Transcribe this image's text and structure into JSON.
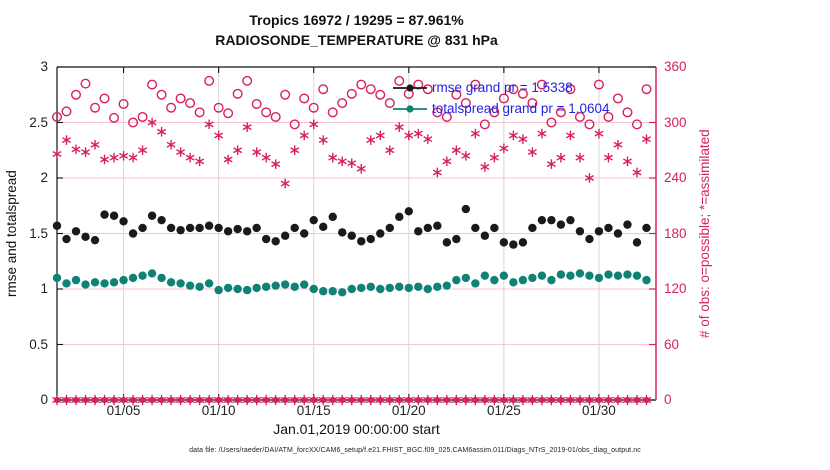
{
  "titles": {
    "line1": "Tropics 16972 / 19295 = 87.961%",
    "line2": "RADIOSONDE_TEMPERATURE @ 831 hPa"
  },
  "footer": {
    "text": "data file: /Users/raeder/DAI/ATM_forcXX/CAM6_setup/f.e21.FHIST_BGC.f09_025.CAM6assim.011/Diags_NTrS_2019-01/obs_diag_output.nc"
  },
  "chart_data": {
    "type": "scatter",
    "title": "Tropics 16972 / 19295 = 87.961%",
    "subtitle": "RADIOSONDE_TEMPERATURE @ 831 hPa",
    "xlabel": "Jan.01,2019 00:00:00 start",
    "ylabel_left": "rmse and totalspread",
    "ylabel_right": "# of obs: o=possible; *=assimilated",
    "xlim_days": [
      1.5,
      33.0
    ],
    "ylim_left": [
      0,
      3
    ],
    "ylim_right": [
      0,
      360
    ],
    "xtick_days": [
      5,
      10,
      15,
      20,
      25,
      30
    ],
    "xtick_labels": [
      "01/05",
      "01/10",
      "01/15",
      "01/20",
      "01/25",
      "01/30"
    ],
    "ytick_left_values": [
      0,
      0.5,
      1,
      1.5,
      2,
      2.5,
      3
    ],
    "ytick_left_labels": [
      "0",
      "0.5",
      "1",
      "1.5",
      "2",
      "2.5",
      "3"
    ],
    "ytick_right_values": [
      0,
      60,
      120,
      180,
      240,
      300,
      360
    ],
    "ytick_right_labels": [
      "0",
      "60",
      "120",
      "180",
      "240",
      "300",
      "360"
    ],
    "grid": {
      "vertical_color": "#d8d8d8",
      "horizontal_color": "#f5c5d3"
    },
    "axis_colors": {
      "left": "#111111",
      "right": "#d6215a"
    },
    "x_days": [
      1.5,
      2,
      2.5,
      3,
      3.5,
      4,
      4.5,
      5,
      5.5,
      6,
      6.5,
      7,
      7.5,
      8,
      8.5,
      9,
      9.5,
      10,
      10.5,
      11,
      11.5,
      12,
      12.5,
      13,
      13.5,
      14,
      14.5,
      15,
      15.5,
      16,
      16.5,
      17,
      17.5,
      18,
      18.5,
      19,
      19.5,
      20,
      20.5,
      21,
      21.5,
      22,
      22.5,
      23,
      23.5,
      24,
      24.5,
      25,
      25.5,
      26,
      26.5,
      27,
      27.5,
      28,
      28.5,
      29,
      29.5,
      30,
      30.5,
      31,
      31.5,
      32,
      32.5
    ],
    "series": [
      {
        "name": "rmse",
        "axis": "left",
        "marker": "filled-circle",
        "color": "#1a1a1a",
        "grand_mean": 1.5338,
        "values": [
          1.57,
          1.45,
          1.52,
          1.47,
          1.44,
          1.67,
          1.66,
          1.61,
          1.5,
          1.55,
          1.66,
          1.62,
          1.55,
          1.53,
          1.55,
          1.55,
          1.57,
          1.55,
          1.52,
          1.54,
          1.52,
          1.55,
          1.45,
          1.43,
          1.48,
          1.55,
          1.5,
          1.62,
          1.56,
          1.65,
          1.51,
          1.48,
          1.43,
          1.45,
          1.5,
          1.55,
          1.65,
          1.7,
          1.52,
          1.55,
          1.57,
          1.42,
          1.45,
          1.72,
          1.55,
          1.48,
          1.55,
          1.42,
          1.4,
          1.42,
          1.55,
          1.62,
          1.62,
          1.58,
          1.62,
          1.52,
          1.45,
          1.52,
          1.55,
          1.5,
          1.58,
          1.42,
          1.55
        ]
      },
      {
        "name": "totalspread",
        "axis": "left",
        "marker": "filled-circle",
        "color": "#0e8276",
        "grand_mean": 1.0604,
        "values": [
          1.1,
          1.05,
          1.08,
          1.04,
          1.06,
          1.05,
          1.06,
          1.08,
          1.1,
          1.12,
          1.14,
          1.1,
          1.06,
          1.05,
          1.03,
          1.02,
          1.05,
          0.99,
          1.01,
          1.0,
          0.99,
          1.01,
          1.02,
          1.03,
          1.04,
          1.02,
          1.04,
          1.0,
          0.98,
          0.98,
          0.97,
          1.0,
          1.01,
          1.02,
          1.0,
          1.01,
          1.02,
          1.01,
          1.02,
          1.0,
          1.02,
          1.03,
          1.08,
          1.1,
          1.05,
          1.12,
          1.08,
          1.12,
          1.06,
          1.08,
          1.1,
          1.12,
          1.08,
          1.13,
          1.12,
          1.14,
          1.12,
          1.1,
          1.13,
          1.12,
          1.13,
          1.12,
          1.08
        ]
      },
      {
        "name": "possible",
        "axis": "right",
        "marker": "open-circle",
        "color": "#d6215a",
        "values": [
          306,
          312,
          330,
          342,
          316,
          326,
          305,
          320,
          300,
          306,
          341,
          330,
          316,
          326,
          321,
          311,
          345,
          316,
          310,
          331,
          345,
          320,
          311,
          306,
          330,
          298,
          326,
          316,
          336,
          311,
          321,
          331,
          341,
          336,
          330,
          321,
          345,
          331,
          341,
          336,
          311,
          306,
          330,
          321,
          341,
          298,
          311,
          326,
          336,
          331,
          321,
          341,
          300,
          311,
          336,
          306,
          298,
          341,
          306,
          326,
          311,
          298,
          336
        ]
      },
      {
        "name": "assimilated",
        "axis": "right",
        "marker": "asterisk",
        "color": "#d6215a",
        "values": [
          266,
          281,
          271,
          268,
          276,
          260,
          262,
          264,
          262,
          270,
          300,
          290,
          276,
          268,
          262,
          258,
          298,
          286,
          260,
          270,
          295,
          268,
          262,
          255,
          234,
          270,
          286,
          298,
          281,
          262,
          258,
          256,
          250,
          281,
          286,
          270,
          295,
          286,
          288,
          282,
          246,
          258,
          270,
          264,
          288,
          252,
          262,
          272,
          286,
          282,
          268,
          288,
          255,
          262,
          286,
          262,
          240,
          288,
          262,
          276,
          258,
          246,
          282
        ]
      },
      {
        "name": "rejected-zero-row",
        "axis": "right",
        "marker": "circle-asterisk",
        "color": "#d6215a",
        "values": [
          0,
          0,
          0,
          0,
          0,
          0,
          0,
          0,
          0,
          0,
          0,
          0,
          0,
          0,
          0,
          0,
          0,
          0,
          0,
          0,
          0,
          0,
          0,
          0,
          0,
          0,
          0,
          0,
          0,
          0,
          0,
          0,
          0,
          0,
          0,
          0,
          0,
          0,
          0,
          0,
          0,
          0,
          0,
          0,
          0,
          0,
          0,
          0,
          0,
          0,
          0,
          0,
          0,
          0,
          0,
          0,
          0,
          0,
          0,
          0,
          0,
          0,
          0
        ]
      }
    ],
    "legend": [
      {
        "label": "rmse grand pr = 1.5338",
        "color": "#1a1a1a",
        "text_color": "#2323e8"
      },
      {
        "label": "totalspread grand pr = 1.0604",
        "color": "#0e8276",
        "text_color": "#2323e8"
      }
    ],
    "legend_position": "upper-center-right",
    "grid_on": true
  }
}
